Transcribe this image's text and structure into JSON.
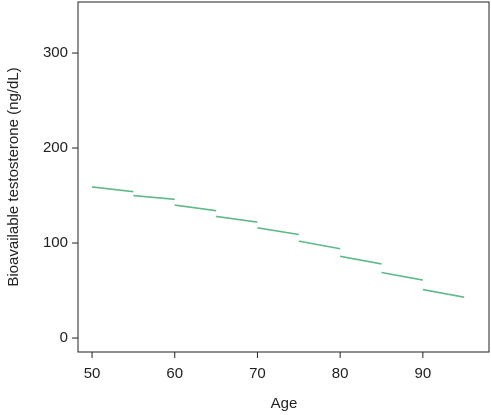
{
  "chart_data": {
    "type": "line",
    "x_label": "Age",
    "y_label": "Bioavailable testosterone (ng/dL)",
    "x": [
      50,
      55,
      55,
      55,
      60,
      60,
      60,
      65,
      65,
      65,
      70,
      70,
      70,
      75,
      75,
      75,
      80,
      80,
      80,
      85,
      85,
      85,
      90,
      90,
      90,
      95
    ],
    "series": [
      {
        "color": "#5fb98a",
        "values": [
          159,
          154,
          null,
          150,
          146,
          null,
          140,
          134,
          null,
          128,
          122,
          null,
          116,
          109,
          null,
          102,
          94,
          null,
          86,
          78,
          null,
          69,
          61,
          null,
          51,
          43
        ]
      }
    ],
    "xlim": [
      48.3,
      98
    ],
    "xticks": [
      50,
      60,
      70,
      80,
      90
    ],
    "ylim": [
      -14.7,
      353.7
    ],
    "yticks": [
      0,
      100,
      200,
      300
    ]
  }
}
